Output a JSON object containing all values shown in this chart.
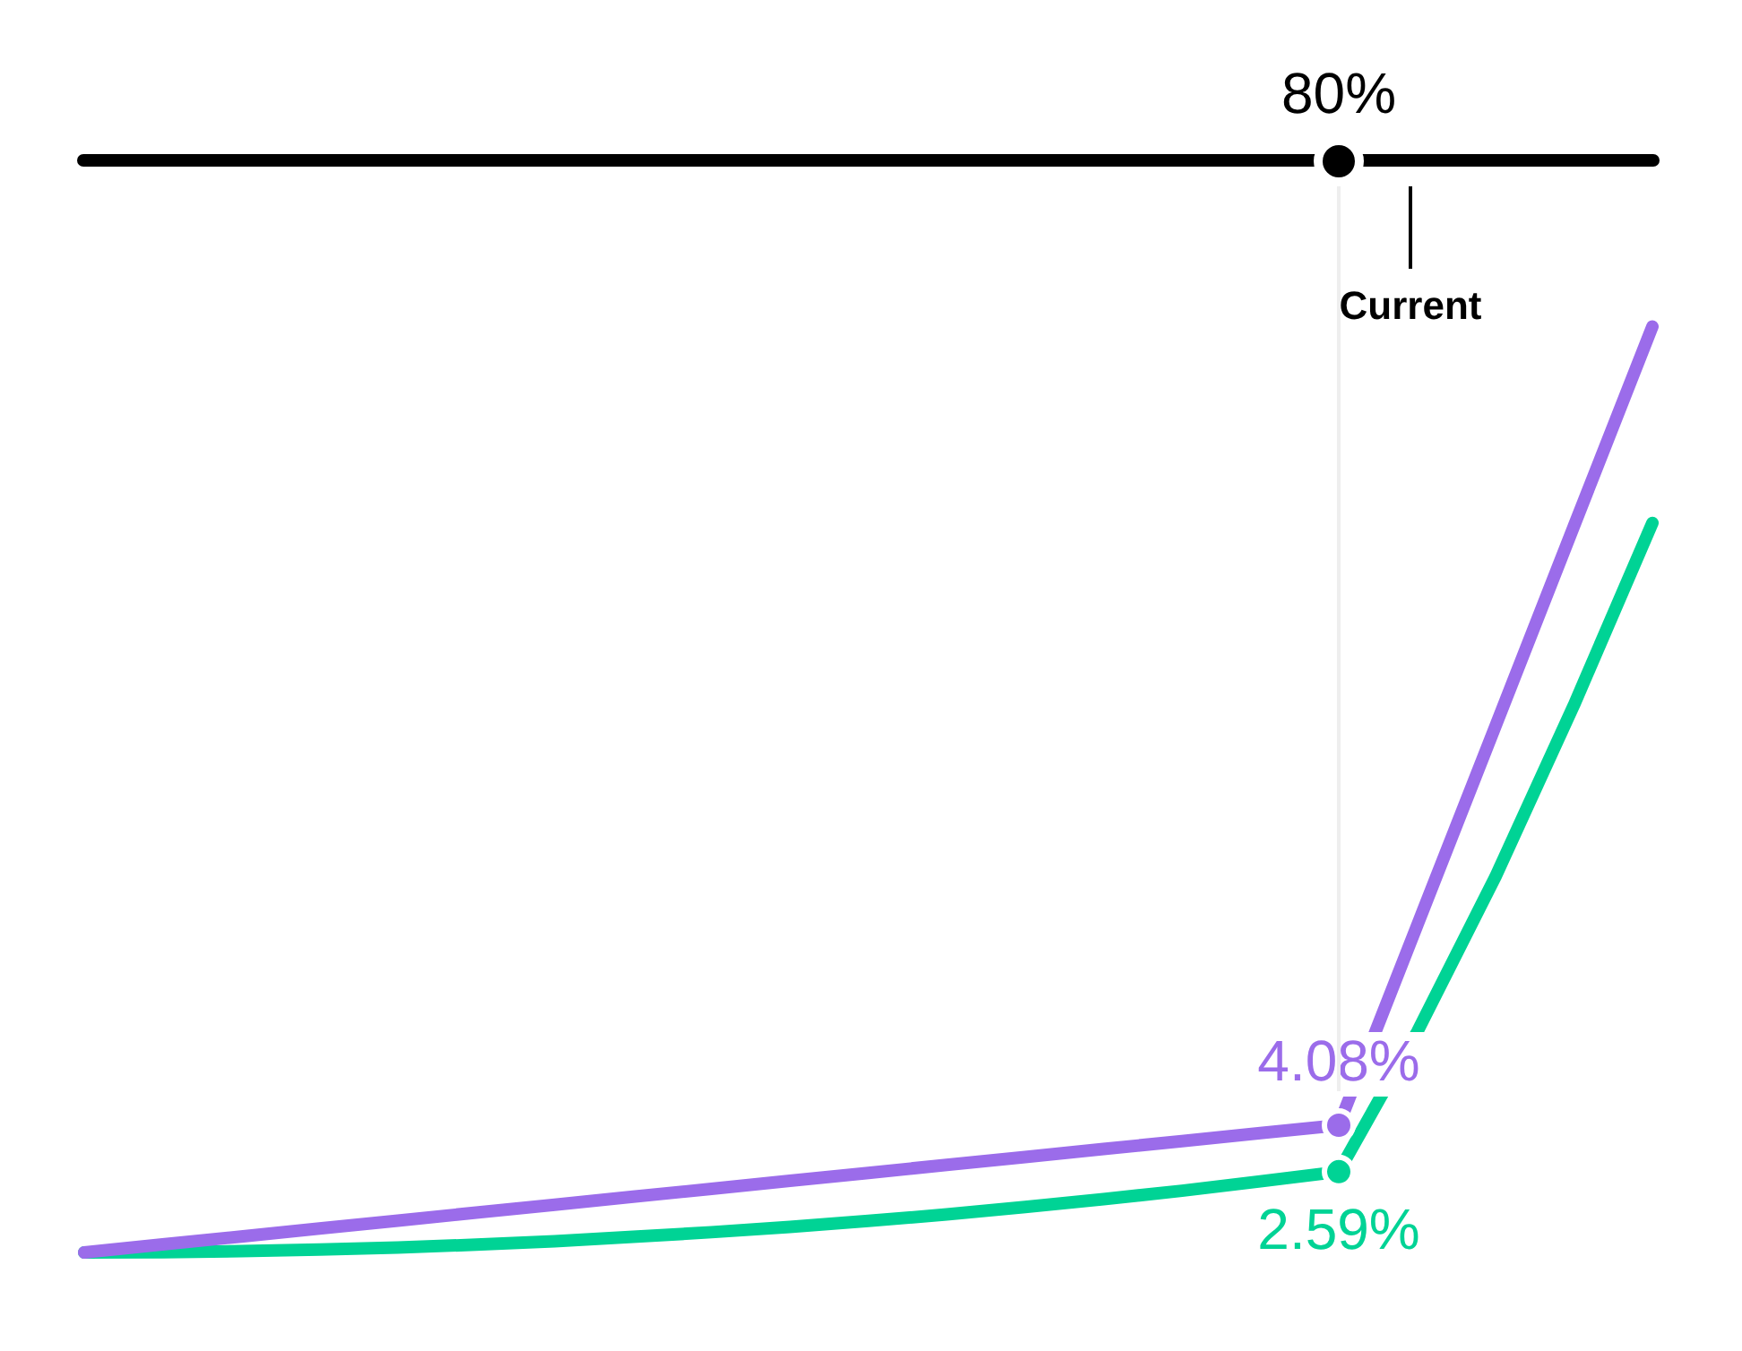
{
  "chart_data": {
    "type": "line",
    "categories": [
      null,
      null,
      null,
      null,
      null,
      null,
      null,
      null,
      null,
      null,
      null,
      null,
      null,
      null,
      null,
      null,
      null,
      null,
      null,
      null,
      null
    ],
    "tick_labels": false,
    "series": [
      {
        "color": "#9b6cea",
        "values": [
          0,
          0.26,
          0.51,
          0.77,
          1.02,
          1.28,
          1.53,
          1.79,
          2.04,
          2.3,
          2.55,
          2.81,
          3.06,
          3.32,
          3.57,
          3.83,
          4.08,
          10.49,
          16.89,
          23.3,
          29.7
        ],
        "value_labels": [
          null,
          null,
          null,
          null,
          null,
          null,
          null,
          null,
          null,
          null,
          null,
          null,
          null,
          null,
          null,
          null,
          "4.08%",
          null,
          null,
          null,
          null
        ]
      },
      {
        "color": "#00d395",
        "values": [
          0,
          0.01,
          0.04,
          0.09,
          0.16,
          0.25,
          0.36,
          0.5,
          0.65,
          0.82,
          1.01,
          1.22,
          1.46,
          1.71,
          1.98,
          2.28,
          2.59,
          7.07,
          12.06,
          17.56,
          23.4
        ],
        "value_labels": [
          null,
          null,
          null,
          null,
          null,
          null,
          null,
          null,
          null,
          null,
          null,
          null,
          null,
          null,
          null,
          null,
          "2.59%",
          null,
          null,
          null,
          null
        ]
      }
    ],
    "annotations": [
      "80%",
      "Current"
    ]
  }
}
